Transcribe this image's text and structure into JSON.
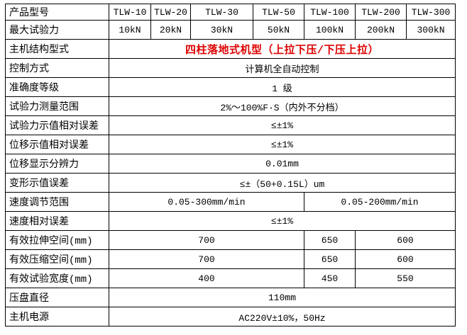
{
  "colors": {
    "background": "#ffffff",
    "border": "#000000",
    "text": "#000000",
    "red_accent": "#dd0000"
  },
  "table": {
    "header_label": "产品型号",
    "header_models": [
      "TLW-10",
      "TLW-20",
      "TLW-30",
      "TLW-50",
      "TLW-100",
      "TLW-200",
      "TLW-300"
    ],
    "rows": [
      {
        "label": "产品型号",
        "cells": [
          {
            "t": "TLW-10",
            "span": 1
          },
          {
            "t": "TLW-20",
            "span": 1
          },
          {
            "t": "TLW-30",
            "span": 1
          },
          {
            "t": "TLW-50",
            "span": 1
          },
          {
            "t": "TLW-100",
            "span": 1
          },
          {
            "t": "TLW-200",
            "span": 1
          },
          {
            "t": "TLW-300",
            "span": 1
          }
        ]
      },
      {
        "label": "最大试验力",
        "cells": [
          {
            "t": "10kN",
            "span": 1
          },
          {
            "t": "20kN",
            "span": 1
          },
          {
            "t": "30kN",
            "span": 1
          },
          {
            "t": "50kN",
            "span": 1
          },
          {
            "t": "100kN",
            "span": 1
          },
          {
            "t": "200kN",
            "span": 1
          },
          {
            "t": "300kN",
            "span": 1
          }
        ]
      },
      {
        "label": "主机结构型式",
        "cells": [
          {
            "t": "四柱落地式机型（上拉下压/下压上拉）",
            "span": 7,
            "red": true
          }
        ]
      },
      {
        "label": "控制方式",
        "cells": [
          {
            "t": "计算机全自动控制",
            "span": 7
          }
        ]
      },
      {
        "label": "准确度等级",
        "cells": [
          {
            "t": "1 级",
            "span": 7
          }
        ]
      },
      {
        "label": "试验力测量范围",
        "cells": [
          {
            "t": "2%～100%F·S（内外不分档）",
            "span": 7
          }
        ]
      },
      {
        "label": "试验力示值相对误差",
        "cells": [
          {
            "t": "≤±1%",
            "span": 7
          }
        ]
      },
      {
        "label": "位移示值相对误差",
        "cells": [
          {
            "t": "≤±1%",
            "span": 7
          }
        ]
      },
      {
        "label": "位移显示分辨力",
        "cells": [
          {
            "t": "0.01mm",
            "span": 7
          }
        ]
      },
      {
        "label": "变形示值误差",
        "cells": [
          {
            "t": "≤±（50+0.15L）um",
            "span": 7
          }
        ]
      },
      {
        "label": "速度调节范围",
        "cells": [
          {
            "t": "0.05-300mm/min",
            "span": 4
          },
          {
            "t": "0.05-200mm/min",
            "span": 3
          }
        ]
      },
      {
        "label": "速度相对误差",
        "cells": [
          {
            "t": "≤±1%",
            "span": 7
          }
        ]
      },
      {
        "label": "有效拉伸空间(mm)",
        "cells": [
          {
            "t": "700",
            "span": 4
          },
          {
            "t": "650",
            "span": 1
          },
          {
            "t": "600",
            "span": 2
          }
        ]
      },
      {
        "label": "有效压缩空间(mm)",
        "cells": [
          {
            "t": "700",
            "span": 4
          },
          {
            "t": "650",
            "span": 1
          },
          {
            "t": "600",
            "span": 2
          }
        ]
      },
      {
        "label": "有效试验宽度(mm)",
        "cells": [
          {
            "t": "400",
            "span": 4
          },
          {
            "t": "450",
            "span": 1
          },
          {
            "t": "550",
            "span": 2
          }
        ]
      },
      {
        "label": "压盘直径",
        "cells": [
          {
            "t": "110mm",
            "span": 7
          }
        ]
      },
      {
        "label": "主机电源",
        "cells": [
          {
            "t": "AC220V±10%，50Hz",
            "span": 7
          }
        ]
      }
    ]
  }
}
